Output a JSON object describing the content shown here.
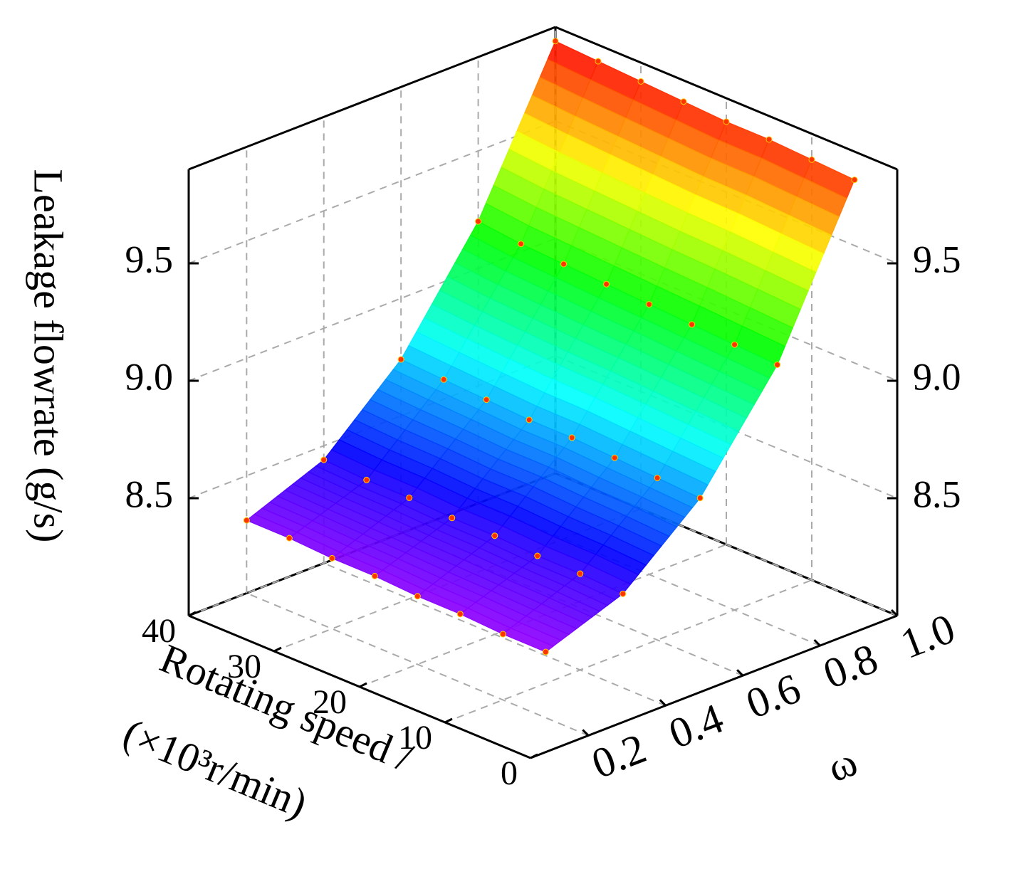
{
  "chart_data": {
    "type": "surface3d",
    "z_label": "Leakage flowrate (g/s)",
    "y_label": [
      "Rotating speed /",
      "(×10³r/min)"
    ],
    "x_label": "ω",
    "x": [
      0.2,
      0.4,
      0.6,
      0.8,
      1.0
    ],
    "y": [
      5,
      10,
      15,
      20,
      25,
      30,
      35,
      40
    ],
    "values": [
      [
        8.28,
        8.28,
        8.29,
        8.29,
        8.3,
        8.3,
        8.31,
        8.31
      ],
      [
        8.4,
        8.41,
        8.41,
        8.42,
        8.42,
        8.43,
        8.43,
        8.44
      ],
      [
        8.68,
        8.69,
        8.7,
        8.71,
        8.71,
        8.72,
        8.73,
        8.74
      ],
      [
        9.12,
        9.13,
        9.14,
        9.15,
        9.16,
        9.17,
        9.18,
        9.2
      ],
      [
        9.78,
        9.79,
        9.8,
        9.8,
        9.81,
        9.82,
        9.83,
        9.84
      ]
    ],
    "marker_color": "#ff3300",
    "xlim": [
      0.05,
      1.0
    ],
    "xticks": [
      0.2,
      0.4,
      0.6,
      0.8,
      {
        "value": 1,
        "label": "1.0"
      }
    ],
    "ylim": [
      0,
      40
    ],
    "yticks": [
      0,
      10,
      20,
      30,
      40
    ],
    "zlim": [
      8.0,
      9.9
    ],
    "zticks": [
      8.5,
      {
        "value": 9,
        "label": "9.0"
      },
      9.5
    ],
    "grid": true
  }
}
